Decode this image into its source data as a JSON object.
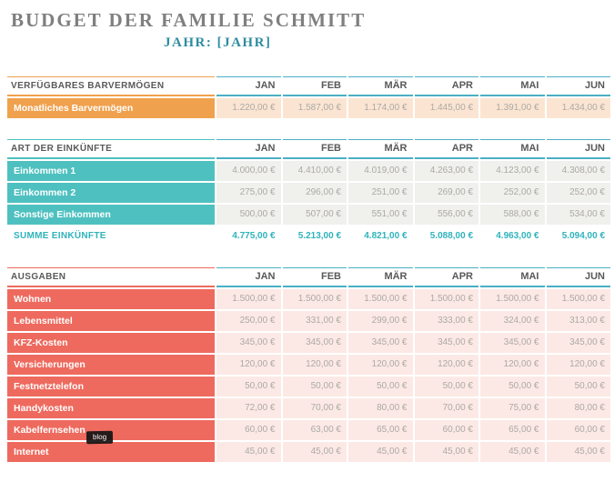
{
  "page": {
    "title": "BUDGET DER FAMILIE SCHMITT",
    "year_label": "JAHR: [JAHR]"
  },
  "months": [
    "JAN",
    "FEB",
    "MÄR",
    "APR",
    "MAI",
    "JUN"
  ],
  "colors": {
    "teal_rule": "#4BAFC4",
    "header_text": "#595959",
    "value_text": "#ACA9A5",
    "sum_text": "#2FB3BC",
    "title": "#7F7F7F",
    "year": "#2E8CA1"
  },
  "sections": [
    {
      "title": "VERFÜGBARES BARVERMÖGEN",
      "accent": "#F0A14E",
      "value_bg": "#FBE5D2",
      "rows": [
        {
          "label": "Monatliches Barvermögen",
          "values": [
            "1.220,00 €",
            "1.587,00 €",
            "1.174,00 €",
            "1.445,00 €",
            "1.391,00 €",
            "1.434,00 €"
          ]
        }
      ]
    },
    {
      "title": "ART DER EINKÜNFTE",
      "accent": "#4FC0C0",
      "value_bg": "#F0F0EC",
      "rows": [
        {
          "label": "Einkommen 1",
          "values": [
            "4.000,00 €",
            "4.410,00 €",
            "4.019,00 €",
            "4.263,00 €",
            "4.123,00 €",
            "4.308,00 €"
          ]
        },
        {
          "label": "Einkommen 2",
          "values": [
            "275,00 €",
            "296,00 €",
            "251,00 €",
            "269,00 €",
            "252,00 €",
            "252,00 €"
          ]
        },
        {
          "label": "Sonstige Einkommen",
          "values": [
            "500,00 €",
            "507,00 €",
            "551,00 €",
            "556,00 €",
            "588,00 €",
            "534,00 €"
          ]
        }
      ],
      "sum_row": {
        "label": "SUMME EINKÜNFTE",
        "values": [
          "4.775,00 €",
          "5.213,00 €",
          "4.821,00 €",
          "5.088,00 €",
          "4.963,00 €",
          "5.094,00 €"
        ]
      }
    },
    {
      "title": "AUSGABEN",
      "accent": "#EE6A5E",
      "value_bg": "#FCE9E5",
      "rows": [
        {
          "label": "Wohnen",
          "values": [
            "1.500,00 €",
            "1.500,00 €",
            "1.500,00 €",
            "1.500,00 €",
            "1.500,00 €",
            "1.500,00 €"
          ]
        },
        {
          "label": "Lebensmittel",
          "values": [
            "250,00 €",
            "331,00 €",
            "299,00 €",
            "333,00 €",
            "324,00 €",
            "313,00 €"
          ]
        },
        {
          "label": "KFZ-Kosten",
          "values": [
            "345,00 €",
            "345,00 €",
            "345,00 €",
            "345,00 €",
            "345,00 €",
            "345,00 €"
          ]
        },
        {
          "label": "Versicherungen",
          "values": [
            "120,00 €",
            "120,00 €",
            "120,00 €",
            "120,00 €",
            "120,00 €",
            "120,00 €"
          ]
        },
        {
          "label": "Festnetztelefon",
          "values": [
            "50,00 €",
            "50,00 €",
            "50,00 €",
            "50,00 €",
            "50,00 €",
            "50,00 €"
          ]
        },
        {
          "label": "Handykosten",
          "values": [
            "72,00 €",
            "70,00 €",
            "80,00 €",
            "70,00 €",
            "75,00 €",
            "80,00 €"
          ]
        },
        {
          "label": "Kabelfernsehen",
          "values": [
            "60,00 €",
            "63,00 €",
            "65,00 €",
            "60,00 €",
            "65,00 €",
            "60,00 €"
          ]
        },
        {
          "label": "Internet",
          "values": [
            "45,00 €",
            "45,00 €",
            "45,00 €",
            "45,00 €",
            "45,00 €",
            "45,00 €"
          ]
        }
      ]
    }
  ],
  "watermark": "blog"
}
